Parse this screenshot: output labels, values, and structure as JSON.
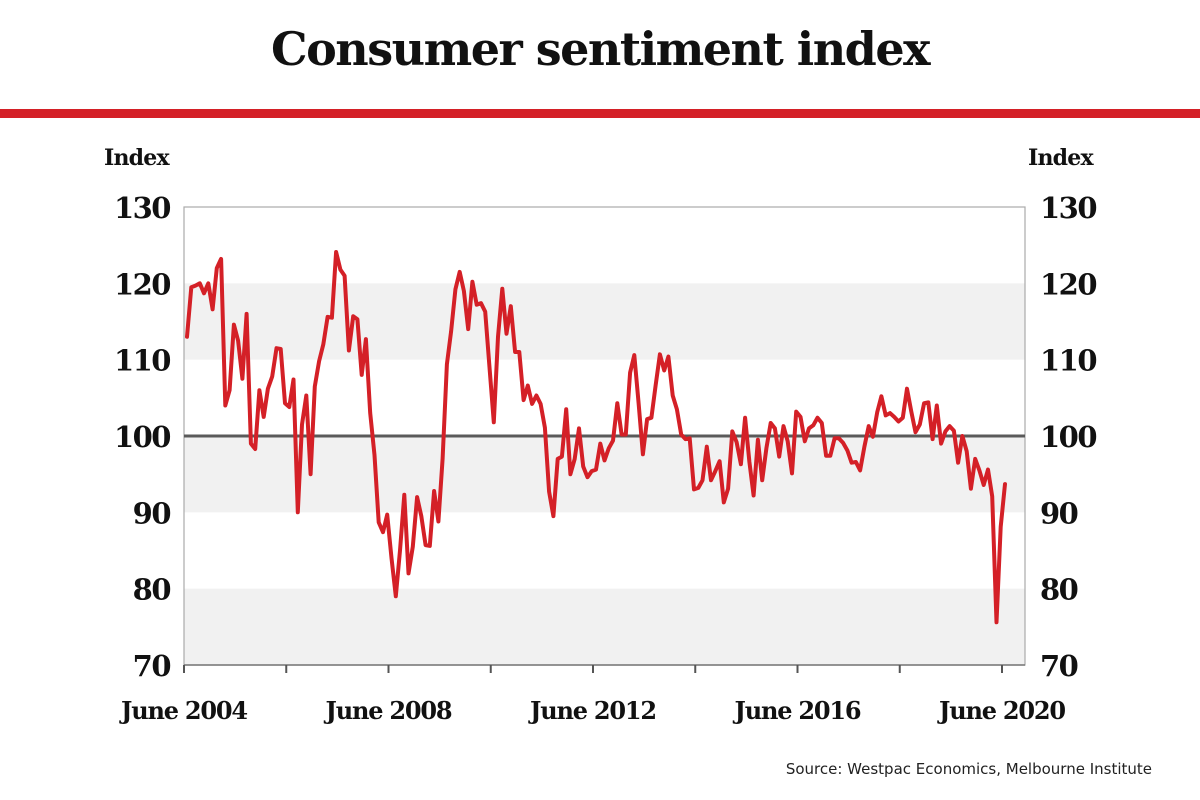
{
  "header": {
    "title": "Consumer sentiment index",
    "accent_color": "#d42027"
  },
  "footer": {
    "source": "Source: Westpac Economics, Melbourne Institute"
  },
  "chart_data": {
    "type": "line",
    "title": "Consumer sentiment index",
    "ylabel_left": "Index",
    "ylabel_right": "Index",
    "xlabel": "",
    "ylim": [
      70,
      130
    ],
    "yticks": [
      70,
      80,
      90,
      100,
      110,
      120,
      130
    ],
    "x_start": "2004-06",
    "x_end": "2020-08",
    "x_frequency": "monthly",
    "xtick_labels": [
      "June 2004",
      "June 2008",
      "June 2012",
      "June 2016",
      "June 2020"
    ],
    "xtick_label_years": [
      2004,
      2008,
      2012,
      2016,
      2020
    ],
    "xtick_minor_years": [
      2006,
      2010,
      2014,
      2018
    ],
    "reference_line": 100,
    "bands": [
      [
        70,
        80
      ],
      [
        90,
        100
      ],
      [
        110,
        120
      ]
    ],
    "grid": false,
    "legend": "none",
    "series": [
      {
        "name": "Consumer sentiment index",
        "color": "#d42027",
        "start": "2004-06",
        "values": [
          113,
          119.5,
          119.7,
          120,
          118.7,
          120,
          116.6,
          122,
          123.2,
          104,
          106,
          114.6,
          112.5,
          107.5,
          116,
          99,
          98.3,
          106,
          102.5,
          106.2,
          107.8,
          111.5,
          111.4,
          104.3,
          103.8,
          107.4,
          90,
          101.5,
          105.3,
          95,
          106.5,
          109.8,
          112,
          115.6,
          115.5,
          124.1,
          121.8,
          121,
          111.2,
          115.7,
          115.3,
          108,
          112.7,
          103,
          97.5,
          88.7,
          87.4,
          89.7,
          84,
          79,
          85,
          92.3,
          82,
          85.5,
          92,
          89.5,
          85.7,
          85.6,
          92.8,
          88.8,
          97,
          109.4,
          113.7,
          119.2,
          121.5,
          119,
          114,
          120.2,
          117.2,
          117.4,
          116.3,
          109,
          101.8,
          113,
          119.3,
          113.4,
          117,
          111,
          111,
          104.7,
          106.6,
          104.2,
          105.3,
          104.2,
          101.1,
          92.7,
          89.5,
          97,
          97.3,
          103.5,
          95,
          97,
          101,
          96,
          94.6,
          95.4,
          95.6,
          99,
          96.8,
          98.4,
          99.4,
          104.3,
          100.2,
          100.2,
          108.3,
          110.6,
          104.3,
          97.6,
          102.2,
          102.4,
          106.6,
          110.7,
          108.6,
          110.4,
          105.3,
          103.5,
          100.2,
          99.6,
          99.7,
          93,
          93.2,
          94.2,
          98.6,
          94.2,
          95.4,
          96.7,
          91.3,
          93.1,
          100.6,
          99.2,
          96.3,
          102.4,
          96.6,
          92.2,
          99.5,
          94.2,
          98.4,
          101.7,
          101,
          97.3,
          101.3,
          99.3,
          95.1,
          103.2,
          102.5,
          99.3,
          101,
          101.4,
          102.4,
          101.7,
          97.4,
          97.4,
          99.7,
          99.7,
          99.1,
          98.1,
          96.5,
          96.6,
          95.5,
          98.6,
          101.3,
          99.9,
          103.1,
          105.2,
          102.7,
          103,
          102.5,
          101.9,
          102.4,
          106.2,
          103.2,
          100.5,
          101.5,
          104.3,
          104.4,
          99.6,
          104,
          99,
          100.6,
          101.3,
          100.7,
          96.5,
          100,
          98,
          93.1,
          97,
          95.5,
          93.6,
          95.6,
          92.1,
          75.6,
          88.1,
          93.7
        ]
      }
    ]
  }
}
